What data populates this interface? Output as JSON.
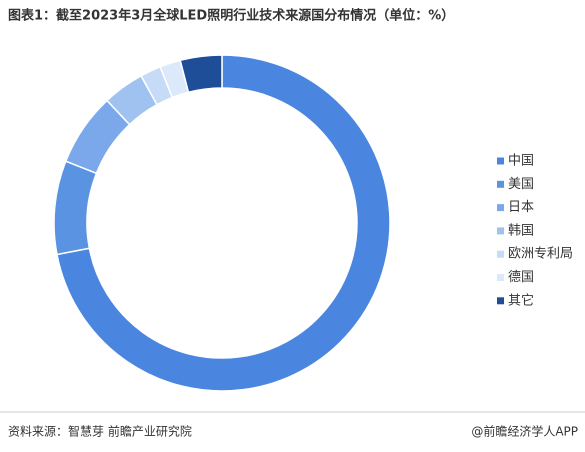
{
  "chart_data": {
    "type": "donut",
    "title": "图表1：截至2023年3月全球LED照明行业技术来源国分布情况（单位：%）",
    "categories": [
      "中国",
      "美国",
      "日本",
      "韩国",
      "欧洲专利局",
      "德国",
      "其它"
    ],
    "values": [
      72,
      9,
      7,
      4,
      2,
      2,
      4
    ],
    "colors": [
      "#4a86e0",
      "#5b93e3",
      "#7aa8eb",
      "#a0c2f0",
      "#c5dbf7",
      "#dbe9fb",
      "#1f4e99"
    ],
    "legend": "right",
    "source": "资料来源：智慧芽 前瞻产业研究院",
    "credit": "@前瞻经济学人APP"
  }
}
